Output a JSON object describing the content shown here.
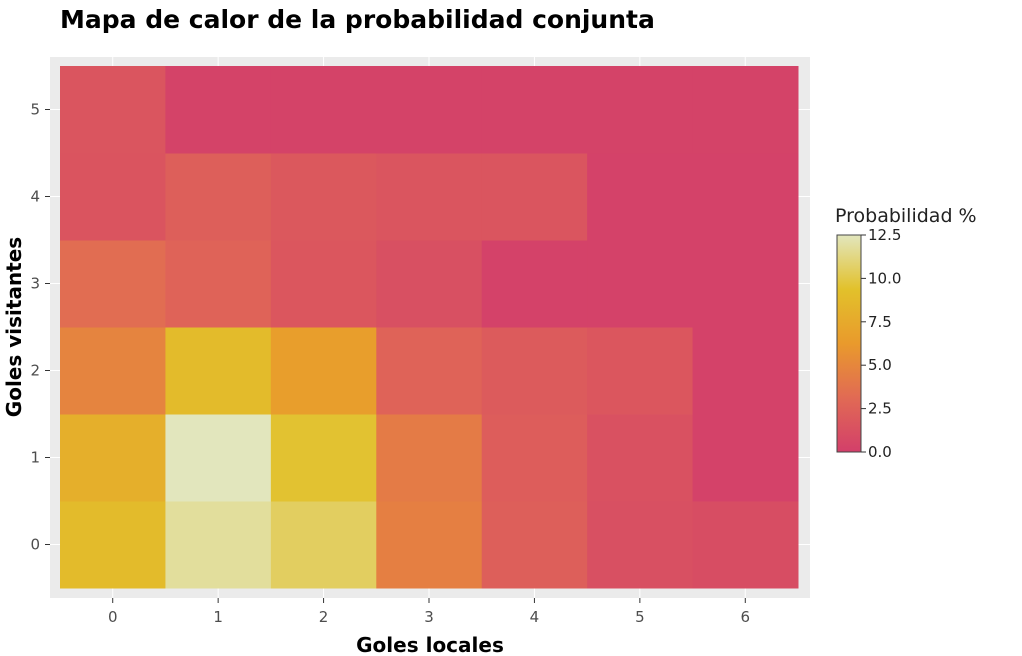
{
  "chart_data": {
    "type": "heatmap",
    "title": "Mapa de calor de la probabilidad conjunta",
    "xlabel": "Goles locales",
    "ylabel": "Goles visitantes",
    "x": [
      0,
      1,
      2,
      3,
      4,
      5,
      6
    ],
    "y": [
      0,
      1,
      2,
      3,
      4,
      5
    ],
    "z": [
      [
        8.9,
        11.8,
        10.5,
        4.5,
        2.3,
        1.2,
        1.0
      ],
      [
        7.9,
        12.5,
        9.5,
        4.2,
        2.2,
        1.3,
        0.2
      ],
      [
        4.8,
        8.9,
        6.6,
        2.6,
        2.0,
        1.7,
        0.2
      ],
      [
        3.3,
        2.6,
        1.7,
        1.2,
        0.2,
        0.2,
        0.2
      ],
      [
        1.5,
        2.3,
        1.8,
        1.6,
        1.6,
        0.2,
        0.2
      ],
      [
        1.6,
        0.3,
        0.3,
        0.3,
        0.3,
        0.3,
        0.3
      ]
    ],
    "colorbar": {
      "title": "Probabilidad %",
      "range": [
        0,
        12.5
      ],
      "ticks": [
        0,
        2.5,
        5,
        7.5,
        10,
        12.5
      ],
      "tick_labels": [
        "0.0",
        "2.5",
        "5.0",
        "7.5",
        "10.0",
        "12.5"
      ],
      "colors": [
        "#d33f6a",
        "#e16a54",
        "#e99a2c",
        "#e2c12b",
        "#e2e6bd"
      ],
      "placement": "right"
    },
    "panel_background": "#ebebeb",
    "grid": true
  }
}
